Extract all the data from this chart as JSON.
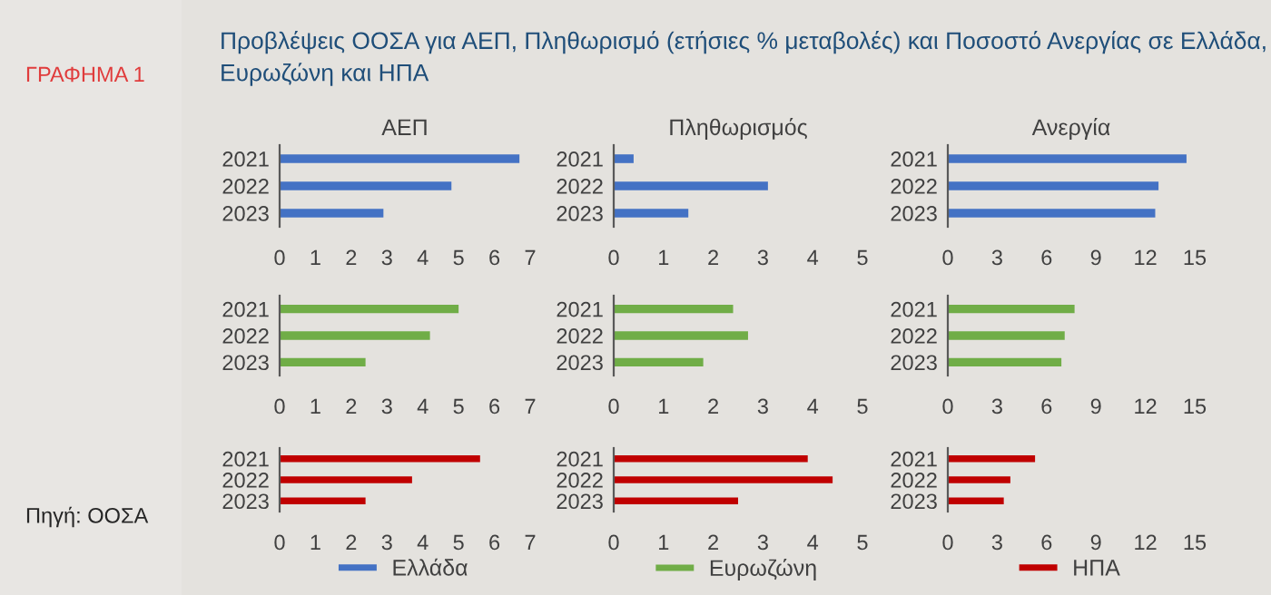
{
  "chart_data": [
    {
      "type": "bar",
      "orientation": "horizontal",
      "title": "ΑΕΠ",
      "categories": [
        "2021",
        "2022",
        "2023"
      ],
      "series": [
        {
          "name": "Ελλάδα",
          "color": "#4472c4",
          "values": [
            6.7,
            4.8,
            2.9
          ]
        }
      ],
      "legend": "bottom",
      "xlim": [
        0,
        7
      ],
      "xticks": [
        0,
        1,
        2,
        3,
        4,
        5,
        6,
        7
      ],
      "annotations": [
        "ΓΡΑΦΗΜΑ 1",
        "Προβλέψεις ΟΟΣΑ για ΑΕΠ, Πληθωρισμό (ετήσιες % μεταβολές) και Ποσοστό Ανεργίας σε Ελλάδα, Ευρωζώνη και ΗΠΑ",
        "Πηγή: ΟΟΣΑ"
      ]
    },
    {
      "type": "bar",
      "orientation": "horizontal",
      "title": "Πληθωρισμός",
      "categories": [
        "2021",
        "2022",
        "2023"
      ],
      "series": [
        {
          "color": "#4472c4",
          "values": [
            0.4,
            3.1,
            1.5
          ]
        }
      ],
      "xlim": [
        0,
        5
      ],
      "xticks": [
        0,
        1,
        2,
        3,
        4,
        5
      ]
    },
    {
      "type": "bar",
      "orientation": "horizontal",
      "title": "Ανεργία",
      "categories": [
        "2021",
        "2022",
        "2023"
      ],
      "series": [
        {
          "color": "#4472c4",
          "values": [
            14.5,
            12.8,
            12.6
          ]
        }
      ],
      "xlim": [
        0,
        15
      ],
      "xticks": [
        0,
        3,
        6,
        9,
        12,
        15
      ]
    },
    {
      "type": "bar",
      "orientation": "horizontal",
      "categories": [
        "2021",
        "2022",
        "2023"
      ],
      "series": [
        {
          "name": "Ευρωζώνη",
          "color": "#70ad47",
          "values": [
            5.0,
            4.2,
            2.4
          ]
        }
      ],
      "legend": "bottom",
      "xlim": [
        0,
        7
      ],
      "xticks": [
        0,
        1,
        2,
        3,
        4,
        5,
        6,
        7
      ]
    },
    {
      "type": "bar",
      "orientation": "horizontal",
      "categories": [
        "2021",
        "2022",
        "2023"
      ],
      "series": [
        {
          "color": "#70ad47",
          "values": [
            2.4,
            2.7,
            1.8
          ]
        }
      ],
      "xlim": [
        0,
        5
      ],
      "xticks": [
        0,
        1,
        2,
        3,
        4,
        5
      ]
    },
    {
      "type": "bar",
      "orientation": "horizontal",
      "categories": [
        "2021",
        "2022",
        "2023"
      ],
      "series": [
        {
          "color": "#70ad47",
          "values": [
            7.7,
            7.1,
            6.9
          ]
        }
      ],
      "xlim": [
        0,
        15
      ],
      "xticks": [
        0,
        3,
        6,
        9,
        12,
        15
      ]
    },
    {
      "type": "bar",
      "orientation": "horizontal",
      "categories": [
        "2021",
        "2022",
        "2023"
      ],
      "series": [
        {
          "name": "ΗΠΑ",
          "color": "#c00000",
          "values": [
            5.6,
            3.7,
            2.4
          ]
        }
      ],
      "legend": "bottom",
      "xlim": [
        0,
        7
      ],
      "xticks": [
        0,
        1,
        2,
        3,
        4,
        5,
        6,
        7
      ]
    },
    {
      "type": "bar",
      "orientation": "horizontal",
      "categories": [
        "2021",
        "2022",
        "2023"
      ],
      "series": [
        {
          "color": "#c00000",
          "values": [
            3.9,
            4.4,
            2.5
          ]
        }
      ],
      "xlim": [
        0,
        5
      ],
      "xticks": [
        0,
        1,
        2,
        3,
        4,
        5
      ]
    },
    {
      "type": "bar",
      "orientation": "horizontal",
      "categories": [
        "2021",
        "2022",
        "2023"
      ],
      "series": [
        {
          "color": "#c00000",
          "values": [
            5.3,
            3.8,
            3.4
          ]
        }
      ],
      "xlim": [
        0,
        15
      ],
      "xticks": [
        0,
        3,
        6,
        9,
        12,
        15
      ]
    }
  ]
}
